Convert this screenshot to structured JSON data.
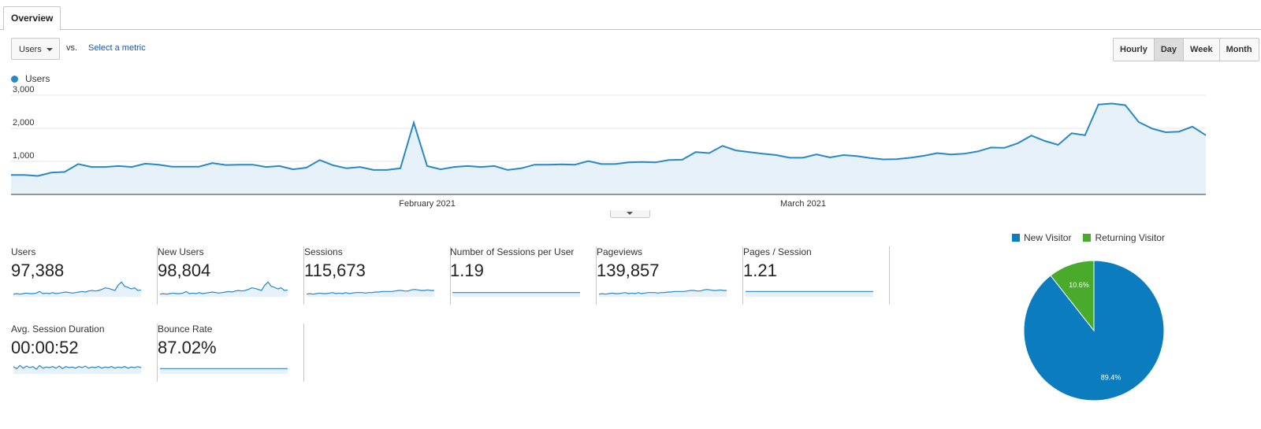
{
  "tabs": [
    {
      "label": "Overview"
    }
  ],
  "controls": {
    "metric": "Users",
    "vs": "vs.",
    "select_metric": "Select a metric",
    "granularity": [
      {
        "label": "Hourly",
        "active": false
      },
      {
        "label": "Day",
        "active": true
      },
      {
        "label": "Week",
        "active": false
      },
      {
        "label": "Month",
        "active": false
      }
    ]
  },
  "colors": {
    "primary": "#2a87c8",
    "fill": "#e6f1fa",
    "returning": "#4aaa2b",
    "new": "#0b7dbf",
    "grid": "#e5e5e5"
  },
  "chart_data": [
    {
      "type": "area",
      "legend": [
        {
          "name": "Users",
          "color": "#2a87c8"
        }
      ],
      "y_ticks": [
        1000,
        2000,
        3000
      ],
      "y_tick_labels": [
        "1,000",
        "2,000",
        "3,000"
      ],
      "ylim": [
        0,
        3000
      ],
      "x_tick_labels": [
        {
          "label": "February 2021",
          "index": 31
        },
        {
          "label": "March 2021",
          "index": 59
        }
      ],
      "series": [
        {
          "name": "Users",
          "values": [
            590,
            590,
            560,
            660,
            680,
            920,
            830,
            830,
            860,
            830,
            930,
            900,
            840,
            840,
            840,
            950,
            890,
            900,
            900,
            830,
            860,
            760,
            810,
            1040,
            880,
            790,
            830,
            740,
            740,
            790,
            2170,
            860,
            760,
            830,
            860,
            830,
            860,
            740,
            790,
            900,
            900,
            910,
            900,
            1010,
            920,
            920,
            970,
            980,
            970,
            1040,
            1050,
            1280,
            1250,
            1470,
            1330,
            1280,
            1230,
            1190,
            1110,
            1110,
            1210,
            1120,
            1190,
            1160,
            1100,
            1060,
            1070,
            1110,
            1170,
            1250,
            1210,
            1230,
            1300,
            1420,
            1410,
            1550,
            1780,
            1620,
            1500,
            1850,
            1790,
            2720,
            2750,
            2700,
            2190,
            1990,
            1880,
            1900,
            2050,
            1790
          ]
        }
      ],
      "grid": true
    },
    {
      "type": "line",
      "title": "Users",
      "series": [
        {
          "name": "Users",
          "values": [
            35,
            36,
            35,
            36,
            37,
            36,
            36,
            37,
            40,
            36,
            37,
            36,
            38,
            36,
            37,
            38,
            39,
            38,
            37,
            38,
            39,
            40,
            39,
            41,
            42,
            41,
            42,
            44,
            47,
            46,
            44,
            42,
            52,
            58,
            50,
            48,
            45,
            47,
            42,
            43
          ]
        }
      ]
    },
    {
      "type": "line",
      "title": "New Users",
      "series": [
        {
          "name": "New Users",
          "values": [
            35,
            36,
            35,
            36,
            37,
            36,
            36,
            37,
            40,
            36,
            37,
            36,
            38,
            36,
            37,
            38,
            39,
            38,
            37,
            38,
            39,
            40,
            39,
            41,
            42,
            41,
            42,
            44,
            47,
            46,
            44,
            42,
            52,
            58,
            50,
            48,
            45,
            47,
            42,
            43
          ]
        }
      ]
    },
    {
      "type": "line",
      "title": "Sessions",
      "series": [
        {
          "name": "Sessions",
          "values": [
            35,
            36,
            35,
            36,
            37,
            36,
            36,
            37,
            38,
            36,
            37,
            36,
            38,
            36,
            37,
            38,
            38,
            38,
            37,
            38,
            38,
            39,
            39,
            40,
            40,
            40,
            40,
            41,
            42,
            42,
            41,
            41,
            43,
            44,
            43,
            42,
            42,
            43,
            42,
            42
          ]
        }
      ]
    },
    {
      "type": "line",
      "title": "Number of Sessions per User",
      "series": [
        {
          "name": "Number of Sessions per User",
          "values": [
            38,
            38,
            38,
            38,
            38,
            38,
            38,
            38,
            38,
            38,
            38,
            38,
            38,
            38,
            38,
            38,
            38,
            38,
            38,
            38,
            38,
            38,
            38,
            38,
            38,
            38,
            38,
            38,
            38,
            38,
            38,
            38,
            38,
            38,
            38,
            38,
            38,
            38,
            38,
            38
          ]
        }
      ]
    },
    {
      "type": "line",
      "title": "Pageviews",
      "series": [
        {
          "name": "Pageviews",
          "values": [
            35,
            36,
            35,
            36,
            37,
            36,
            36,
            37,
            38,
            36,
            37,
            36,
            38,
            36,
            37,
            38,
            38,
            38,
            37,
            38,
            38,
            39,
            39,
            40,
            40,
            40,
            40,
            41,
            42,
            42,
            41,
            41,
            43,
            44,
            43,
            42,
            42,
            43,
            42,
            42
          ]
        }
      ]
    },
    {
      "type": "line",
      "title": "Pages / Session",
      "series": [
        {
          "name": "Pages / Session",
          "values": [
            40,
            40,
            40,
            40,
            40,
            40,
            40,
            40,
            40,
            40,
            40,
            40,
            40,
            40,
            40,
            40,
            40,
            40,
            40,
            40,
            40,
            40,
            40,
            40,
            40,
            40,
            40,
            40,
            40,
            40,
            40,
            40,
            40,
            40,
            40,
            40,
            40,
            40,
            40,
            40
          ]
        }
      ]
    },
    {
      "type": "line",
      "title": "Avg. Session Duration",
      "series": [
        {
          "name": "Avg. Session Duration",
          "values": [
            44,
            40,
            46,
            41,
            45,
            42,
            44,
            39,
            46,
            41,
            43,
            42,
            44,
            41,
            45,
            40,
            44,
            42,
            43,
            41,
            44,
            42,
            45,
            41,
            43,
            42,
            44,
            41,
            43,
            42,
            44,
            41,
            43,
            42,
            44,
            41,
            43,
            42,
            44,
            42
          ]
        }
      ]
    },
    {
      "type": "line",
      "title": "Bounce Rate",
      "series": [
        {
          "name": "Bounce Rate",
          "values": [
            40,
            40,
            40,
            40,
            40,
            40,
            40,
            40,
            40,
            40,
            40,
            40,
            40,
            40,
            40,
            40,
            40,
            40,
            40,
            40,
            40,
            40,
            40,
            40,
            40,
            40,
            40,
            40,
            40,
            40,
            40,
            40,
            40,
            40,
            40,
            40,
            40,
            40,
            40,
            40
          ]
        }
      ]
    },
    {
      "type": "pie",
      "legend": [
        {
          "name": "New Visitor",
          "color": "#0b7dbf"
        },
        {
          "name": "Returning Visitor",
          "color": "#4aaa2b"
        }
      ],
      "slices": [
        {
          "name": "New Visitor",
          "value": 89.4,
          "label": "89.4%"
        },
        {
          "name": "Returning Visitor",
          "value": 10.6,
          "label": "10.6%"
        }
      ]
    }
  ],
  "metrics": [
    {
      "label": "Users",
      "value": "97,388"
    },
    {
      "label": "New Users",
      "value": "98,804"
    },
    {
      "label": "Sessions",
      "value": "115,673"
    },
    {
      "label": "Number of Sessions per User",
      "value": "1.19"
    },
    {
      "label": "Pageviews",
      "value": "139,857"
    },
    {
      "label": "Pages / Session",
      "value": "1.21"
    },
    {
      "label": "Avg. Session Duration",
      "value": "00:00:52"
    },
    {
      "label": "Bounce Rate",
      "value": "87.02%"
    }
  ]
}
